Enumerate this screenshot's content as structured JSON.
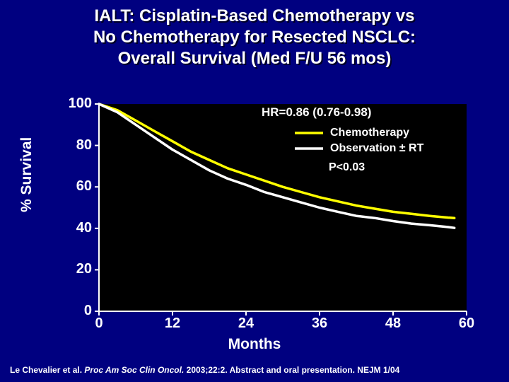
{
  "slide": {
    "background_color": "#000080",
    "title": {
      "lines": [
        "IALT: Cisplatin-Based Chemotherapy vs",
        "No Chemotherapy for Resected NSCLC:",
        "Overall Survival (Med F/U 56 mos)"
      ],
      "fontsize": 24,
      "color": "#ffffff"
    },
    "citation": {
      "prefix": "Le Chevalier et al. ",
      "italic": "Proc Am Soc Clin Oncol. ",
      "suffix": "2003;22:2. Abstract and oral presentation. NEJM 1/04",
      "fontsize": 12,
      "color": "#ffffff"
    }
  },
  "chart": {
    "type": "line",
    "plot_background": "#000000",
    "axis_color": "#ffffff",
    "tick_fontsize": 20,
    "axis_label_fontsize": 21,
    "x": {
      "label": "Months",
      "min": 0,
      "max": 60,
      "ticks": [
        0,
        12,
        24,
        36,
        48,
        60
      ]
    },
    "y": {
      "label": "% Survival",
      "min": 0,
      "max": 100,
      "ticks": [
        0,
        20,
        40,
        60,
        80,
        100
      ]
    },
    "series": [
      {
        "name": "Chemotherapy",
        "color": "#ffff00",
        "line_width": 3.5,
        "x": [
          0,
          3,
          6,
          9,
          12,
          15,
          18,
          21,
          24,
          27,
          30,
          33,
          36,
          39,
          42,
          45,
          48,
          51,
          54,
          57,
          58
        ],
        "y": [
          100,
          97,
          92,
          87,
          82,
          77,
          73,
          69,
          66,
          63,
          60,
          57.5,
          55,
          53,
          51,
          49.5,
          48,
          47,
          46,
          45.2,
          45
        ]
      },
      {
        "name": "Observation ± RT",
        "color": "#ffffff",
        "line_width": 3.5,
        "x": [
          0,
          3,
          6,
          9,
          12,
          15,
          18,
          21,
          24,
          27,
          30,
          33,
          36,
          39,
          42,
          45,
          48,
          51,
          54,
          57,
          58
        ],
        "y": [
          100,
          96,
          90,
          84,
          78,
          73,
          68,
          64,
          61,
          57.5,
          55,
          52.5,
          50,
          48,
          46,
          45,
          43.5,
          42.3,
          41.5,
          40.6,
          40.2
        ]
      }
    ],
    "annotations": {
      "hr": {
        "text": "HR=0.86 (0.76-0.98)",
        "fontsize": 17,
        "color": "#ffffff"
      },
      "pval": {
        "text": "P<0.03",
        "fontsize": 16,
        "color": "#ffffff"
      },
      "legend": {
        "label_chemo": "Chemotherapy",
        "label_obs": "Observation ± RT",
        "fontsize": 16
      }
    }
  }
}
